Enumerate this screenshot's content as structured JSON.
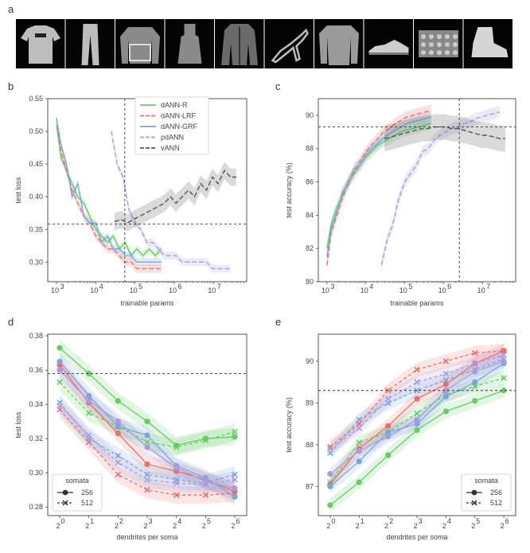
{
  "figure": {
    "panel_labels": [
      "a",
      "b",
      "c",
      "d",
      "e"
    ]
  },
  "image_strip": {
    "count": 10,
    "items": [
      "tshirt",
      "trouser",
      "pullover",
      "dress",
      "coat",
      "sandal",
      "shirt",
      "sneaker",
      "bag",
      "ankle-boot"
    ]
  },
  "colors": {
    "dANN-R": "#66cc66",
    "dANN-LRF": "#e8706e",
    "dANN-GRF": "#7aa6d8",
    "pdANN": "#a99be0",
    "vANN": "#555555"
  },
  "chart_data": [
    {
      "id": "b",
      "type": "line",
      "xlabel": "trainable params",
      "ylabel": "test loss",
      "xscale": "log",
      "xlim": [
        600,
        70000000
      ],
      "ylim": [
        0.27,
        0.55
      ],
      "yticks": [
        "0.30",
        "0.35",
        "0.40",
        "0.45",
        "0.50",
        "0.55"
      ],
      "ytick_values": [
        0.3,
        0.35,
        0.4,
        0.45,
        0.5,
        0.55
      ],
      "xticks": [
        "10",
        "10",
        "10",
        "10",
        "10"
      ],
      "xtick_exps": [
        "3",
        "4",
        "5",
        "6",
        "7"
      ],
      "xtick_values": [
        1000,
        10000,
        100000,
        1000000,
        10000000
      ],
      "hline": 0.358,
      "vline": 55000,
      "legend": [
        "dANN-R",
        "dANN-LRF",
        "dANN-GRF",
        "pdANN",
        "vANN"
      ],
      "legend_position": "top-right",
      "series": [
        {
          "name": "dANN-R",
          "x": [
            1000,
            1300,
            1800,
            2500,
            3500,
            5000,
            7000,
            10000,
            14000,
            20000,
            28000,
            40000,
            56000,
            80000,
            110000,
            160000,
            230000,
            330000,
            470000
          ],
          "y": [
            0.51,
            0.46,
            0.44,
            0.42,
            0.4,
            0.39,
            0.37,
            0.35,
            0.34,
            0.33,
            0.34,
            0.32,
            0.33,
            0.31,
            0.32,
            0.31,
            0.32,
            0.31,
            0.32
          ]
        },
        {
          "name": "dANN-LRF",
          "x": [
            1000,
            1300,
            1800,
            2500,
            3500,
            5000,
            7000,
            10000,
            14000,
            20000,
            28000,
            40000,
            56000,
            80000,
            110000,
            160000,
            230000,
            330000,
            470000
          ],
          "y": [
            0.52,
            0.47,
            0.44,
            0.41,
            0.39,
            0.37,
            0.36,
            0.34,
            0.33,
            0.32,
            0.32,
            0.31,
            0.3,
            0.3,
            0.29,
            0.29,
            0.29,
            0.29,
            0.29
          ]
        },
        {
          "name": "dANN-GRF",
          "x": [
            1000,
            1300,
            1800,
            2500,
            3500,
            5000,
            7000,
            10000,
            14000,
            20000,
            28000,
            40000,
            56000,
            80000,
            110000,
            160000,
            230000,
            330000,
            470000
          ],
          "y": [
            0.52,
            0.48,
            0.45,
            0.4,
            0.42,
            0.37,
            0.36,
            0.36,
            0.33,
            0.34,
            0.32,
            0.32,
            0.31,
            0.31,
            0.3,
            0.3,
            0.3,
            0.3,
            0.3
          ]
        },
        {
          "name": "pdANN",
          "x": [
            25000,
            35000,
            50000,
            70000,
            100000,
            140000,
            200000,
            280000,
            400000,
            560000,
            800000,
            1100000,
            1600000,
            2300000,
            3300000,
            4700000,
            6600000,
            9400000,
            13000000,
            19000000,
            27000000
          ],
          "y": [
            0.5,
            0.45,
            0.43,
            0.38,
            0.36,
            0.35,
            0.33,
            0.33,
            0.32,
            0.31,
            0.31,
            0.31,
            0.3,
            0.3,
            0.3,
            0.3,
            0.3,
            0.29,
            0.29,
            0.29,
            0.29
          ]
        },
        {
          "name": "vANN",
          "x": [
            30000,
            45000,
            65000,
            90000,
            130000,
            190000,
            270000,
            390000,
            560000,
            800000,
            1100000,
            1600000,
            2300000,
            3300000,
            4700000,
            6600000,
            9400000,
            13000000,
            19000000,
            27000000,
            38000000
          ],
          "y": [
            0.362,
            0.365,
            0.36,
            0.365,
            0.37,
            0.375,
            0.38,
            0.385,
            0.39,
            0.4,
            0.39,
            0.4,
            0.41,
            0.4,
            0.42,
            0.41,
            0.43,
            0.42,
            0.44,
            0.43,
            0.43
          ]
        }
      ]
    },
    {
      "id": "c",
      "type": "line",
      "xlabel": "trainable params",
      "ylabel": "test accuracy (%)",
      "xscale": "log",
      "xlim": [
        600,
        70000000
      ],
      "ylim": [
        80,
        91
      ],
      "yticks": [
        "80",
        "82",
        "84",
        "86",
        "88",
        "90"
      ],
      "ytick_values": [
        80,
        82,
        84,
        86,
        88,
        90
      ],
      "xticks": [
        "10",
        "10",
        "10",
        "10",
        "10"
      ],
      "xtick_exps": [
        "3",
        "4",
        "5",
        "6",
        "7"
      ],
      "xtick_values": [
        1000,
        10000,
        100000,
        1000000,
        10000000
      ],
      "hline": 89.3,
      "vline": 2500000,
      "series": [
        {
          "name": "dANN-R",
          "x": [
            1000,
            1300,
            1800,
            2500,
            3500,
            5000,
            7000,
            10000,
            14000,
            20000,
            28000,
            40000,
            56000,
            80000,
            110000,
            160000,
            230000,
            330000,
            470000
          ],
          "y": [
            82.0,
            83.5,
            84.5,
            85.2,
            86.0,
            86.5,
            87.0,
            87.5,
            87.8,
            88.2,
            88.4,
            88.6,
            88.8,
            89.0,
            89.1,
            89.2,
            89.3,
            89.4,
            89.5
          ]
        },
        {
          "name": "dANN-LRF",
          "x": [
            1000,
            1300,
            1800,
            2500,
            3500,
            5000,
            7000,
            10000,
            14000,
            20000,
            28000,
            40000,
            56000,
            80000,
            110000,
            160000,
            230000,
            330000,
            470000
          ],
          "y": [
            81.0,
            83.0,
            84.0,
            85.0,
            86.0,
            86.6,
            87.2,
            87.8,
            88.2,
            88.6,
            89.0,
            89.2,
            89.5,
            89.7,
            89.9,
            90.0,
            90.1,
            90.2,
            90.3
          ]
        },
        {
          "name": "dANN-GRF",
          "x": [
            1000,
            1300,
            1800,
            2500,
            3500,
            5000,
            7000,
            10000,
            14000,
            20000,
            28000,
            40000,
            56000,
            80000,
            110000,
            160000,
            230000,
            330000,
            470000
          ],
          "y": [
            81.5,
            83.2,
            84.2,
            85.4,
            85.8,
            86.8,
            87.0,
            87.6,
            88.0,
            88.3,
            88.6,
            88.9,
            89.1,
            89.3,
            89.5,
            89.6,
            89.7,
            89.8,
            89.9
          ]
        },
        {
          "name": "pdANN",
          "x": [
            25000,
            35000,
            50000,
            70000,
            100000,
            140000,
            200000,
            280000,
            400000,
            560000,
            800000,
            1100000,
            1600000,
            2300000,
            3300000,
            4700000,
            6600000,
            9400000,
            13000000,
            19000000,
            27000000
          ],
          "y": [
            81.0,
            82.5,
            83.5,
            85.0,
            86.0,
            86.5,
            87.0,
            87.8,
            88.0,
            88.5,
            88.8,
            89.0,
            89.2,
            89.3,
            89.5,
            89.6,
            89.8,
            89.9,
            90.0,
            90.1,
            90.2
          ]
        },
        {
          "name": "vANN",
          "x": [
            30000,
            45000,
            65000,
            90000,
            130000,
            190000,
            270000,
            390000,
            560000,
            800000,
            1100000,
            1600000,
            2300000,
            3300000,
            4700000,
            6600000,
            9400000,
            13000000,
            19000000,
            27000000,
            38000000
          ],
          "y": [
            88.6,
            88.7,
            88.8,
            88.9,
            89.0,
            89.1,
            89.2,
            89.2,
            89.3,
            89.3,
            89.3,
            89.2,
            89.2,
            89.1,
            89.0,
            88.9,
            88.8,
            88.8,
            88.7,
            88.6,
            88.6
          ]
        }
      ]
    },
    {
      "id": "d",
      "type": "line",
      "xlabel": "dendrites per soma",
      "ylabel": "test loss",
      "categories": [
        "2",
        "2",
        "2",
        "2",
        "2",
        "2",
        "2"
      ],
      "category_exps": [
        "0",
        "1",
        "2",
        "3",
        "4",
        "5",
        "6"
      ],
      "ylim": [
        0.275,
        0.381
      ],
      "yticks": [
        "0.28",
        "0.30",
        "0.32",
        "0.34",
        "0.36",
        "0.38"
      ],
      "ytick_values": [
        0.28,
        0.3,
        0.32,
        0.34,
        0.36,
        0.38
      ],
      "hline": 0.358,
      "legend_title": "somata",
      "legend": [
        "256",
        "512"
      ],
      "legend_position": "bottom-left",
      "series": [
        {
          "name": "dANN-R",
          "somata": "256",
          "values": [
            0.373,
            0.358,
            0.342,
            0.33,
            0.316,
            0.32,
            0.321
          ]
        },
        {
          "name": "dANN-R",
          "somata": "512",
          "values": [
            0.353,
            0.335,
            0.327,
            0.318,
            0.315,
            0.319,
            0.324
          ]
        },
        {
          "name": "dANN-LRF",
          "somata": "256",
          "values": [
            0.363,
            0.341,
            0.323,
            0.305,
            0.301,
            0.296,
            0.289
          ]
        },
        {
          "name": "dANN-LRF",
          "somata": "512",
          "values": [
            0.337,
            0.318,
            0.299,
            0.29,
            0.287,
            0.287,
            0.288
          ]
        },
        {
          "name": "dANN-GRF",
          "somata": "256",
          "values": [
            0.365,
            0.345,
            0.327,
            0.322,
            0.304,
            0.297,
            0.286
          ]
        },
        {
          "name": "dANN-GRF",
          "somata": "512",
          "values": [
            0.341,
            0.32,
            0.31,
            0.299,
            0.296,
            0.294,
            0.299
          ]
        },
        {
          "name": "pdANN",
          "somata": "256",
          "values": [
            0.36,
            0.342,
            0.33,
            0.315,
            0.303,
            0.295,
            0.291
          ]
        },
        {
          "name": "pdANN",
          "somata": "512",
          "values": [
            0.339,
            0.322,
            0.306,
            0.296,
            0.294,
            0.293,
            0.296
          ]
        }
      ]
    },
    {
      "id": "e",
      "type": "line",
      "xlabel": "dendrites per soma",
      "ylabel": "test accuracy (%)",
      "categories": [
        "2",
        "2",
        "2",
        "2",
        "2",
        "2",
        "2"
      ],
      "category_exps": [
        "0",
        "1",
        "2",
        "3",
        "4",
        "5",
        "6"
      ],
      "ylim": [
        86.3,
        90.65
      ],
      "yticks": [
        "87",
        "88",
        "89",
        "90"
      ],
      "ytick_values": [
        87,
        88,
        89,
        90
      ],
      "hline": 89.3,
      "legend_title": "somata",
      "legend": [
        "256",
        "512"
      ],
      "legend_position": "bottom-right",
      "series": [
        {
          "name": "dANN-R",
          "somata": "256",
          "values": [
            86.55,
            87.1,
            87.75,
            88.35,
            88.8,
            89.05,
            89.3
          ]
        },
        {
          "name": "dANN-R",
          "somata": "512",
          "values": [
            87.1,
            88.05,
            88.3,
            88.75,
            89.2,
            89.4,
            89.6
          ]
        },
        {
          "name": "dANN-LRF",
          "somata": "256",
          "values": [
            87.05,
            87.9,
            88.45,
            89.1,
            89.45,
            89.95,
            90.25
          ]
        },
        {
          "name": "dANN-LRF",
          "somata": "512",
          "values": [
            87.95,
            88.5,
            89.3,
            89.8,
            90.0,
            90.2,
            90.25
          ]
        },
        {
          "name": "dANN-GRF",
          "somata": "256",
          "values": [
            87.0,
            87.6,
            88.3,
            88.5,
            89.15,
            89.5,
            89.95
          ]
        },
        {
          "name": "dANN-GRF",
          "somata": "512",
          "values": [
            87.8,
            88.6,
            89.0,
            89.3,
            89.55,
            89.8,
            90.05
          ]
        },
        {
          "name": "pdANN",
          "somata": "256",
          "values": [
            87.3,
            87.85,
            88.2,
            88.6,
            89.3,
            89.75,
            90.0
          ]
        },
        {
          "name": "pdANN",
          "somata": "512",
          "values": [
            87.9,
            88.4,
            89.1,
            89.5,
            89.7,
            89.95,
            90.15
          ]
        }
      ]
    }
  ]
}
